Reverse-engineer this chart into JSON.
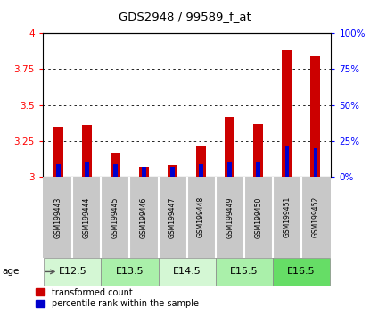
{
  "title": "GDS2948 / 99589_f_at",
  "samples": [
    "GSM199443",
    "GSM199444",
    "GSM199445",
    "GSM199446",
    "GSM199447",
    "GSM199448",
    "GSM199449",
    "GSM199450",
    "GSM199451",
    "GSM199452"
  ],
  "red_values": [
    3.35,
    3.36,
    3.17,
    3.07,
    3.08,
    3.22,
    3.42,
    3.37,
    3.88,
    3.84
  ],
  "blue_values": [
    3.09,
    3.11,
    3.09,
    3.07,
    3.07,
    3.09,
    3.1,
    3.1,
    3.21,
    3.2
  ],
  "y_min": 3.0,
  "y_max": 4.0,
  "y_ticks": [
    3.0,
    3.25,
    3.5,
    3.75,
    4.0
  ],
  "right_ticks": [
    0,
    25,
    50,
    75,
    100
  ],
  "age_groups": [
    {
      "label": "E12.5",
      "indices": [
        0,
        1
      ],
      "color": "#d4f7d4"
    },
    {
      "label": "E13.5",
      "indices": [
        2,
        3
      ],
      "color": "#aaf0aa"
    },
    {
      "label": "E14.5",
      "indices": [
        4,
        5
      ],
      "color": "#d4f7d4"
    },
    {
      "label": "E15.5",
      "indices": [
        6,
        7
      ],
      "color": "#aaf0aa"
    },
    {
      "label": "E16.5",
      "indices": [
        8,
        9
      ],
      "color": "#66dd66"
    }
  ],
  "red_color": "#cc0000",
  "blue_color": "#0000cc",
  "label_red": "transformed count",
  "label_blue": "percentile rank within the sample",
  "sample_box_color": "#c8c8c8",
  "bar_width": 0.35
}
